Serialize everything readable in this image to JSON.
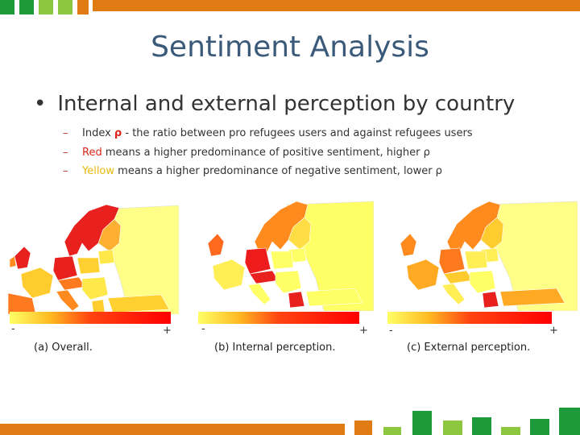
{
  "title": "Sentiment Analysis",
  "bullet": "Internal and external perception by country",
  "subitems": [
    {
      "dash": "–",
      "prefix": "Index ",
      "rho": "ρ",
      "rest": " - the ratio between pro refugees users and against refugees users"
    },
    {
      "dash": "–",
      "color_word": "Red",
      "rest": " means a higher predominance of positive sentiment, higher ρ"
    },
    {
      "dash": "–",
      "color_word": "Yellow",
      "rest": " means a higher predominance of negative sentiment, lower ρ"
    }
  ],
  "panels": [
    {
      "caption": "(a) Overall.",
      "minus": "-",
      "plus": "+"
    },
    {
      "caption": "(b) Internal perception.",
      "minus": "-",
      "plus": "+"
    },
    {
      "caption": "(c) External perception.",
      "minus": "-",
      "plus": "+"
    }
  ],
  "colors": {
    "accent_orange": "#e07b14",
    "green_dark": "#1f9a3a",
    "green_light": "#8dc63f",
    "title_blue": "#3b5a7a",
    "scale_low": "#ffff66",
    "scale_high": "#ff0000"
  }
}
